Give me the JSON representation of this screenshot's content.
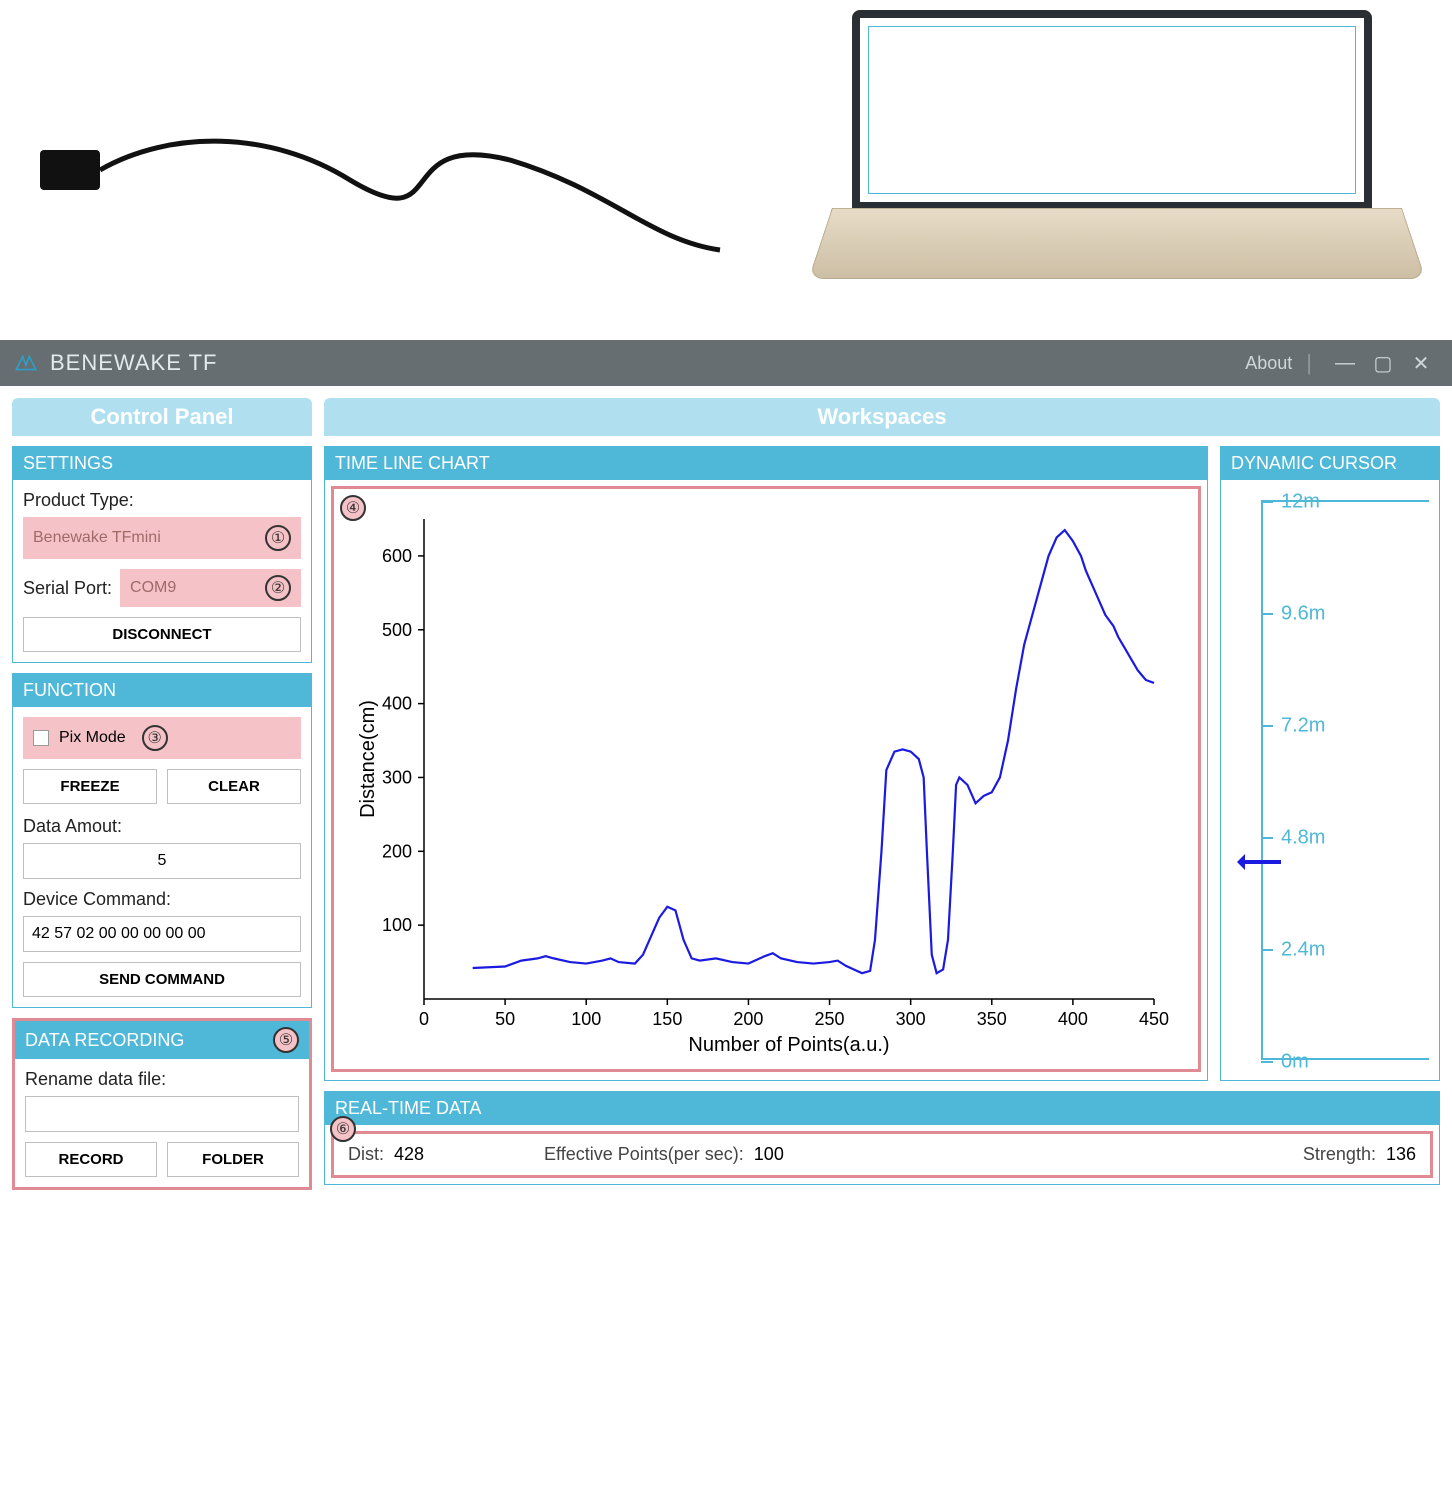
{
  "app": {
    "title": "BENEWAKE TF",
    "about": "About"
  },
  "tabs": {
    "control_panel": "Control Panel",
    "workspaces": "Workspaces"
  },
  "settings": {
    "head": "SETTINGS",
    "product_type_label": "Product Type:",
    "product_type_value": "Benewake TFmini",
    "serial_port_label": "Serial Port:",
    "serial_port_value": "COM9",
    "disconnect": "DISCONNECT",
    "callouts": {
      "one": "①",
      "two": "②"
    }
  },
  "function": {
    "head": "FUNCTION",
    "pix_mode": "Pix Mode",
    "callout_three": "③",
    "freeze": "FREEZE",
    "clear": "CLEAR",
    "data_amount_label": "Data Amout:",
    "data_amount_value": "5",
    "device_command_label": "Device Command:",
    "device_command_value": "42 57 02 00 00 00 00 00",
    "send_command": "SEND COMMAND"
  },
  "recording": {
    "head": "DATA RECORDING",
    "callout_five": "⑤",
    "rename_label": "Rename data file:",
    "rename_value": "",
    "record": "RECORD",
    "folder": "FOLDER"
  },
  "chart": {
    "head": "TIME LINE CHART",
    "callout_four": "④",
    "type": "line",
    "xlabel": "Number of Points(a.u.)",
    "ylabel": "Distance(cm)",
    "xlim": [
      0,
      450
    ],
    "xtick_step": 50,
    "ylim": [
      0,
      650
    ],
    "yticks": [
      100,
      200,
      300,
      400,
      500,
      600
    ],
    "line_color": "#1a1ae0",
    "axis_color": "#000000",
    "tick_fontsize": 18,
    "label_fontsize": 20,
    "data": [
      [
        30,
        42
      ],
      [
        40,
        43
      ],
      [
        50,
        44
      ],
      [
        60,
        52
      ],
      [
        70,
        55
      ],
      [
        75,
        58
      ],
      [
        80,
        55
      ],
      [
        90,
        50
      ],
      [
        100,
        48
      ],
      [
        110,
        52
      ],
      [
        115,
        55
      ],
      [
        120,
        50
      ],
      [
        130,
        48
      ],
      [
        135,
        60
      ],
      [
        140,
        85
      ],
      [
        145,
        110
      ],
      [
        150,
        125
      ],
      [
        155,
        120
      ],
      [
        160,
        80
      ],
      [
        165,
        55
      ],
      [
        170,
        52
      ],
      [
        180,
        55
      ],
      [
        190,
        50
      ],
      [
        200,
        48
      ],
      [
        210,
        58
      ],
      [
        215,
        62
      ],
      [
        220,
        55
      ],
      [
        230,
        50
      ],
      [
        240,
        48
      ],
      [
        250,
        50
      ],
      [
        255,
        52
      ],
      [
        260,
        45
      ],
      [
        265,
        40
      ],
      [
        270,
        35
      ],
      [
        275,
        38
      ],
      [
        278,
        80
      ],
      [
        282,
        200
      ],
      [
        285,
        310
      ],
      [
        290,
        335
      ],
      [
        295,
        338
      ],
      [
        300,
        335
      ],
      [
        305,
        325
      ],
      [
        308,
        300
      ],
      [
        310,
        200
      ],
      [
        313,
        60
      ],
      [
        316,
        35
      ],
      [
        320,
        40
      ],
      [
        323,
        80
      ],
      [
        326,
        200
      ],
      [
        328,
        290
      ],
      [
        330,
        300
      ],
      [
        335,
        290
      ],
      [
        340,
        265
      ],
      [
        345,
        275
      ],
      [
        350,
        280
      ],
      [
        355,
        300
      ],
      [
        360,
        350
      ],
      [
        365,
        420
      ],
      [
        370,
        480
      ],
      [
        375,
        520
      ],
      [
        380,
        560
      ],
      [
        385,
        600
      ],
      [
        390,
        625
      ],
      [
        395,
        635
      ],
      [
        400,
        620
      ],
      [
        405,
        600
      ],
      [
        408,
        580
      ],
      [
        412,
        560
      ],
      [
        416,
        540
      ],
      [
        420,
        520
      ],
      [
        425,
        505
      ],
      [
        428,
        490
      ],
      [
        432,
        475
      ],
      [
        436,
        460
      ],
      [
        440,
        445
      ],
      [
        445,
        432
      ],
      [
        450,
        428
      ]
    ]
  },
  "cursor": {
    "head": "DYNAMIC CURSOR",
    "min_m": 0,
    "max_m": 12,
    "tick_step_m": 2.4,
    "ticks": [
      "12m",
      "9.6m",
      "7.2m",
      "4.8m",
      "2.4m",
      "0m"
    ],
    "value_m": 4.28,
    "color": "#4fb8d8",
    "marker_color": "#1a1ae0"
  },
  "realtime": {
    "head": "REAL-TIME DATA",
    "callout_six": "⑥",
    "dist_label": "Dist:",
    "dist_value": "428",
    "epps_label": "Effective Points(per sec):",
    "epps_value": "100",
    "strength_label": "Strength:",
    "strength_value": "136"
  }
}
